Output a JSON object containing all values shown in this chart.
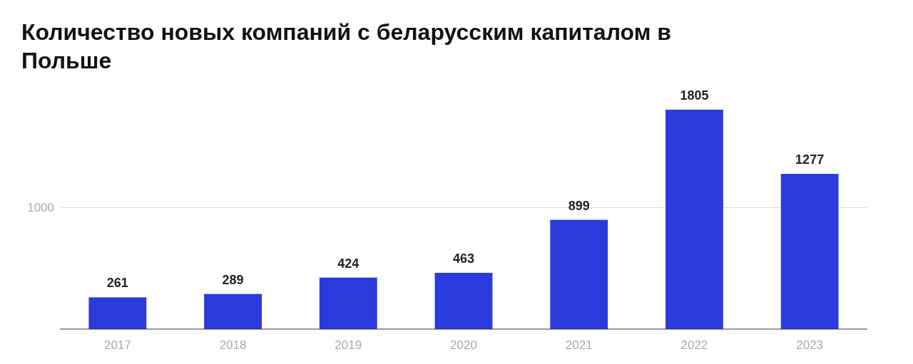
{
  "chart_data": {
    "type": "bar",
    "title": "Количество новых компаний с беларусским капиталом в Польше",
    "categories": [
      "2017",
      "2018",
      "2019",
      "2020",
      "2021",
      "2022",
      "2023"
    ],
    "values": [
      261,
      289,
      424,
      463,
      899,
      1805,
      1277
    ],
    "color": "#2a3bdc",
    "data_labels": true,
    "ref_lines": [
      {
        "axis": "y",
        "value": 1000,
        "label": "1000",
        "color": "#dddddd"
      }
    ]
  }
}
